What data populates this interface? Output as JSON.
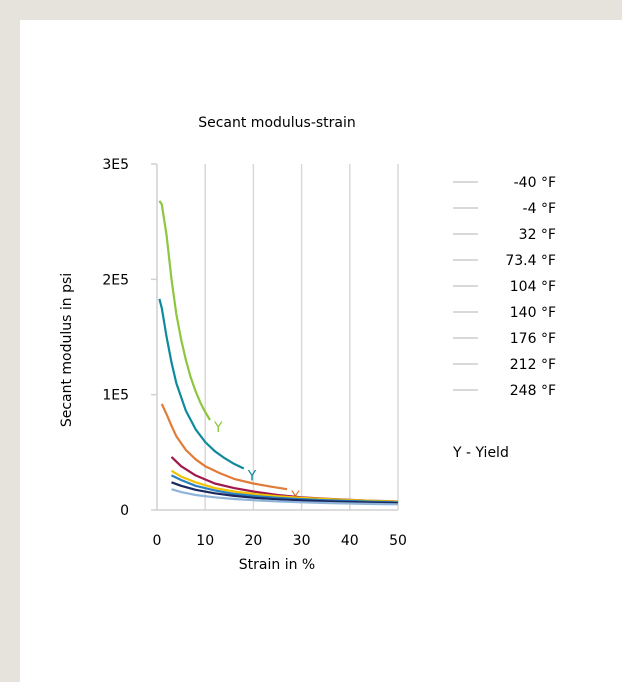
{
  "chart_data": {
    "type": "line",
    "title": "Secant modulus-strain",
    "xlabel": "Strain in %",
    "ylabel": "Secant modulus in psi",
    "xlim": [
      0,
      50
    ],
    "ylim": [
      0,
      300000
    ],
    "x_ticks": [
      "0",
      "10",
      "20",
      "30",
      "40",
      "50"
    ],
    "y_ticks": [
      "0",
      "1E5",
      "2E5",
      "3E5"
    ],
    "grid": "vertical",
    "legend_position": "right",
    "note": "Y - Yield",
    "yield_marker": "Y",
    "series": [
      {
        "name": "-40 °F",
        "color": "#8dc63f",
        "yield": true,
        "x": [
          0.5,
          1,
          2,
          3,
          4,
          5,
          6,
          7,
          8,
          9,
          10,
          11
        ],
        "y": [
          268000,
          265000,
          238000,
          200000,
          170000,
          148000,
          130000,
          115000,
          103000,
          93000,
          85000,
          78000
        ]
      },
      {
        "name": "-4 °F",
        "color": "#0f8a9d",
        "yield": true,
        "x": [
          0.5,
          1,
          2,
          3,
          4,
          6,
          8,
          10,
          12,
          14,
          16,
          18
        ],
        "y": [
          183000,
          175000,
          150000,
          128000,
          110000,
          86000,
          70000,
          59000,
          51000,
          45000,
          40000,
          36000
        ]
      },
      {
        "name": "32 °F",
        "color": "#e07b39",
        "yield": true,
        "x": [
          1,
          2,
          3,
          4,
          6,
          8,
          10,
          13,
          16,
          20,
          24,
          27
        ],
        "y": [
          92000,
          83000,
          73000,
          64000,
          52000,
          44000,
          38000,
          32000,
          27000,
          23000,
          20000,
          18000
        ]
      },
      {
        "name": "73.4 °F",
        "color": "#ffffff",
        "yield": false,
        "x": [],
        "y": []
      },
      {
        "name": "104 °F",
        "color": "#a0184a",
        "yield": false,
        "x": [
          3,
          5,
          8,
          12,
          16,
          20,
          25,
          30,
          35,
          40,
          45,
          50
        ],
        "y": [
          46000,
          38000,
          30000,
          23000,
          19000,
          16000,
          13000,
          11000,
          9800,
          8800,
          8000,
          7400
        ]
      },
      {
        "name": "140 °F",
        "color": "#f2c200",
        "yield": false,
        "x": [
          3,
          5,
          8,
          12,
          16,
          20,
          25,
          30,
          35,
          40,
          45,
          50
        ],
        "y": [
          34000,
          29000,
          24000,
          19000,
          16000,
          14000,
          12000,
          10500,
          9500,
          8600,
          7900,
          7300
        ]
      },
      {
        "name": "176 °F",
        "color": "#2a7fc1",
        "yield": false,
        "x": [
          3,
          5,
          8,
          12,
          16,
          20,
          25,
          30,
          35,
          40,
          45,
          50
        ],
        "y": [
          30000,
          26000,
          21000,
          17000,
          14000,
          12200,
          10600,
          9400,
          8500,
          7800,
          7200,
          6700
        ]
      },
      {
        "name": "212 °F",
        "color": "#1b2a5e",
        "yield": false,
        "x": [
          3,
          5,
          8,
          12,
          16,
          20,
          25,
          30,
          35,
          40,
          45,
          50
        ],
        "y": [
          24000,
          21000,
          17500,
          14500,
          12200,
          10700,
          9300,
          8300,
          7500,
          6900,
          6400,
          6000
        ]
      },
      {
        "name": "248 °F",
        "color": "#8fb3d9",
        "yield": false,
        "x": [
          3,
          5,
          8,
          12,
          16,
          20,
          25,
          30,
          35,
          40,
          45,
          50
        ],
        "y": [
          18000,
          15500,
          13000,
          11000,
          9500,
          8500,
          7500,
          6700,
          6100,
          5600,
          5200,
          4900
        ]
      }
    ]
  }
}
